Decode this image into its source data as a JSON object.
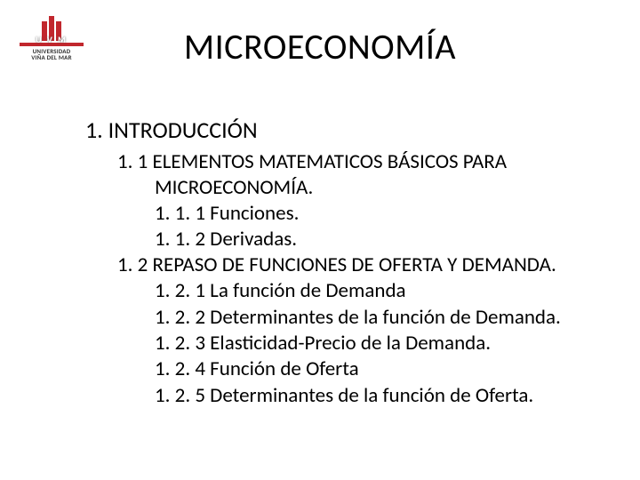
{
  "logo": {
    "letters": "U V M",
    "line1": "UNIVERSIDAD",
    "line2": "VIÑA DEL MAR",
    "bar_color": "#c1272d"
  },
  "title": "MICROECONOMÍA",
  "outline": {
    "section": "1. INTRODUCCIÓN",
    "sub1_a": "1. 1 ELEMENTOS MATEMATICOS BÁSICOS PARA",
    "sub1_b": "MICROECONOMÍA.",
    "sub1_items": [
      "1. 1. 1 Funciones.",
      "1. 1. 2 Derivadas."
    ],
    "sub2": "1. 2 REPASO DE FUNCIONES DE OFERTA Y DEMANDA.",
    "sub2_items": [
      "1. 2. 1 La función de Demanda",
      "1. 2. 2 Determinantes de la función de Demanda.",
      "1. 2. 3 Elasticidad-Precio de la Demanda.",
      "1. 2. 4 Función de Oferta",
      "1. 2. 5 Determinantes de la función de Oferta."
    ]
  },
  "style": {
    "background": "#ffffff",
    "text_color": "#000000",
    "title_fontsize": 40,
    "h1_fontsize": 26,
    "body_fontsize": 23,
    "font_family": "Calibri"
  }
}
